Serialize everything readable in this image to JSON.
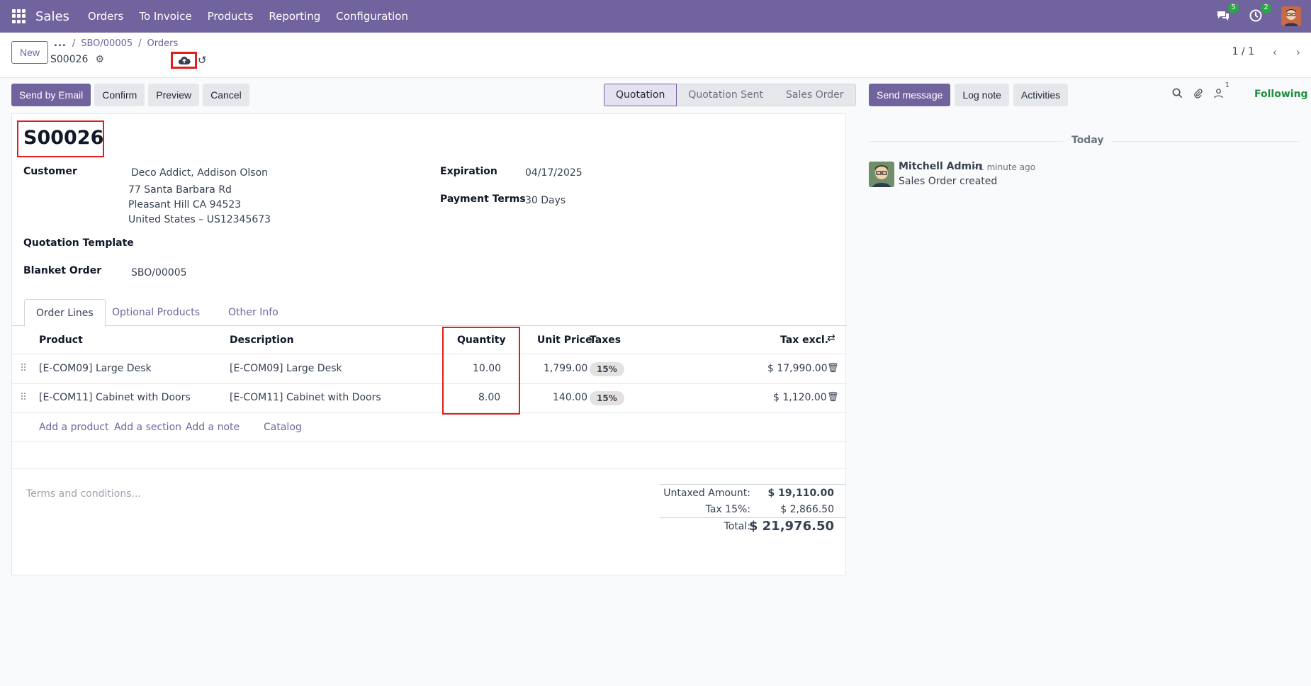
{
  "navbar": {
    "app_name": "Sales",
    "menu": [
      "Orders",
      "To Invoice",
      "Products",
      "Reporting",
      "Configuration"
    ],
    "messages_count": "5",
    "activities_count": "2"
  },
  "control_panel": {
    "new_label": "New",
    "breadcrumb_more": "...",
    "breadcrumb": [
      "SBO/00005",
      "Orders"
    ],
    "record_name": "S00026",
    "pager_value": "1 / 1"
  },
  "actions": {
    "send_email": "Send by Email",
    "confirm": "Confirm",
    "preview": "Preview",
    "cancel": "Cancel"
  },
  "statusbar": [
    "Quotation",
    "Quotation Sent",
    "Sales Order"
  ],
  "form": {
    "title": "S00026",
    "customer_label": "Customer",
    "customer_name": "Deco Addict, Addison Olson",
    "address_1": "77 Santa Barbara Rd",
    "address_2": "Pleasant Hill CA 94523",
    "address_3": "United States – US12345673",
    "template_label": "Quotation Template",
    "blanket_label": "Blanket Order",
    "blanket_value": "SBO/00005",
    "expiration_label": "Expiration",
    "expiration_value": "04/17/2025",
    "terms_label": "Payment Terms",
    "terms_value": "30 Days"
  },
  "tabs": [
    "Order Lines",
    "Optional Products",
    "Other Info"
  ],
  "lines": {
    "headers": {
      "product": "Product",
      "description": "Description",
      "quantity": "Quantity",
      "unit_price": "Unit Price",
      "taxes": "Taxes",
      "tax_excl": "Tax excl."
    },
    "rows": [
      {
        "product": "[E-COM09] Large Desk",
        "description": "[E-COM09] Large Desk",
        "quantity": "10.00",
        "unit_price": "1,799.00",
        "tax": "15%",
        "subtotal": "$ 17,990.00"
      },
      {
        "product": "[E-COM11] Cabinet with Doors",
        "description": "[E-COM11] Cabinet with Doors",
        "quantity": "8.00",
        "unit_price": "140.00",
        "tax": "15%",
        "subtotal": "$ 1,120.00"
      }
    ],
    "add_product": "Add a product",
    "add_section": "Add a section",
    "add_note": "Add a note",
    "catalog": "Catalog"
  },
  "footer": {
    "terms_placeholder": "Terms and conditions...",
    "untaxed_label": "Untaxed Amount:",
    "untaxed_value": "$ 19,110.00",
    "tax_label": "Tax 15%:",
    "tax_value": "$ 2,866.50",
    "total_label": "Total:",
    "total_value": "$ 21,976.50"
  },
  "chatter": {
    "send_message": "Send message",
    "log_note": "Log note",
    "activities": "Activities",
    "follower_count": "1",
    "following": "Following",
    "today": "Today",
    "message": {
      "author": "Mitchell Admin",
      "time": "- 1 minute ago",
      "body": "Sales Order created"
    }
  }
}
